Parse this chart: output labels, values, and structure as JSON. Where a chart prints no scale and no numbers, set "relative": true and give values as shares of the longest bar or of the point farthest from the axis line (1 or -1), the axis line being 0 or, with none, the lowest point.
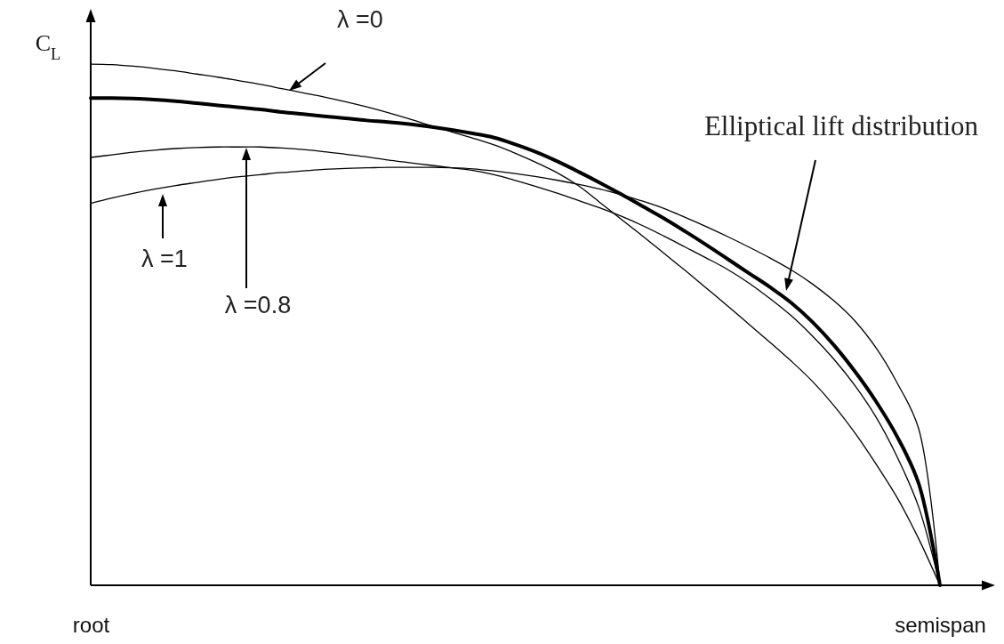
{
  "chart_data": {
    "type": "line",
    "ylabel": "C$_{L}$",
    "relative": true,
    "tick_labels": "x",
    "categories": [
      "root",
      null,
      null,
      null,
      null,
      null,
      null,
      null,
      null,
      null,
      null,
      null,
      null,
      null,
      null,
      null,
      null,
      null,
      null,
      null,
      null,
      null,
      null,
      null,
      null,
      null,
      null,
      null,
      null,
      null,
      null,
      null,
      null,
      null,
      null,
      null,
      null,
      null,
      null,
      null,
      "semispan"
    ],
    "series": [
      {
        "color": "#000000",
        "values": [
          1,
          0.999,
          0.996,
          0.992,
          0.987,
          0.981,
          0.975,
          0.968,
          0.961,
          0.953,
          0.945,
          0.937,
          0.928,
          0.918,
          0.907,
          0.895,
          0.882,
          0.87,
          0.858,
          0.845,
          0.829,
          0.811,
          0.791,
          0.766,
          0.734,
          0.702,
          0.67,
          0.637,
          0.604,
          0.57,
          0.536,
          0.501,
          0.466,
          0.43,
          0.391,
          0.345,
          0.292,
          0.232,
          0.167,
          0.089,
          0
        ]
      },
      {
        "color": "#000000",
        "values": [
          0.935,
          0.935,
          0.934,
          0.932,
          0.929,
          0.925,
          0.921,
          0.917,
          0.913,
          0.908,
          0.904,
          0.9,
          0.896,
          0.892,
          0.889,
          0.885,
          0.88,
          0.874,
          0.867,
          0.859,
          0.846,
          0.831,
          0.813,
          0.793,
          0.772,
          0.75,
          0.727,
          0.704,
          0.679,
          0.653,
          0.626,
          0.599,
          0.572,
          0.542,
          0.505,
          0.461,
          0.41,
          0.352,
          0.284,
          0.195,
          0
        ]
      },
      {
        "color": "#000000",
        "values": [
          0.821,
          0.826,
          0.831,
          0.835,
          0.838,
          0.84,
          0.841,
          0.841,
          0.841,
          0.839,
          0.836,
          0.832,
          0.827,
          0.822,
          0.816,
          0.811,
          0.806,
          0.801,
          0.796,
          0.788,
          0.777,
          0.765,
          0.752,
          0.738,
          0.724,
          0.708,
          0.69,
          0.67,
          0.649,
          0.628,
          0.606,
          0.58,
          0.55,
          0.517,
          0.478,
          0.434,
          0.383,
          0.322,
          0.245,
          0.15,
          0
        ]
      },
      {
        "color": "#000000",
        "values": [
          0.733,
          0.743,
          0.752,
          0.76,
          0.767,
          0.773,
          0.779,
          0.784,
          0.788,
          0.792,
          0.795,
          0.798,
          0.8,
          0.801,
          0.802,
          0.802,
          0.802,
          0.801,
          0.799,
          0.795,
          0.79,
          0.784,
          0.777,
          0.769,
          0.76,
          0.749,
          0.737,
          0.723,
          0.706,
          0.688,
          0.669,
          0.649,
          0.628,
          0.605,
          0.578,
          0.546,
          0.507,
          0.455,
          0.387,
          0.3,
          0
        ]
      }
    ],
    "annotations": [
      "λ =0",
      "λ =1",
      "λ =0.8",
      "Elliptical lift distribution"
    ]
  }
}
